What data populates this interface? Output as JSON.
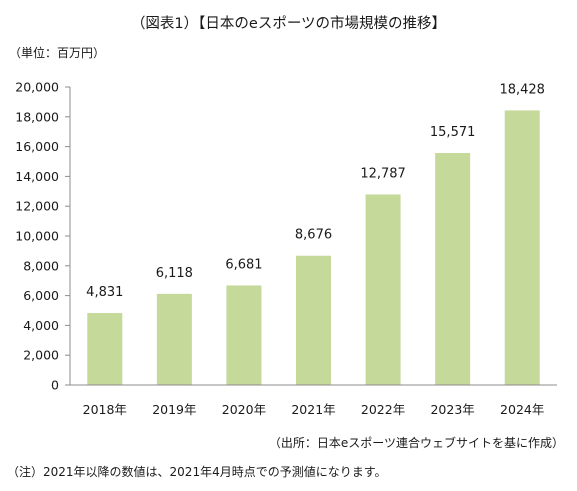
{
  "header": {
    "title": "（図表1）【日本のeスポーツの市場規模の推移】",
    "unit": "（単位：百万円）"
  },
  "footer": {
    "source": "（出所：日本eスポーツ連合ウェブサイトを基に作成）",
    "note": "（注）2021年以降の数値は、2021年4月時点での予測値になります。"
  },
  "colors": {
    "bar": "#c5d99a",
    "axis": "#8c8c8c"
  },
  "chart_data": {
    "type": "bar",
    "title": "（図表1）【日本のeスポーツの市場規模の推移】",
    "ylabel": "（単位：百万円）",
    "categories": [
      "2018年",
      "2019年",
      "2020年",
      "2021年",
      "2022年",
      "2023年",
      "2024年"
    ],
    "values": [
      4831,
      6118,
      6681,
      8676,
      12787,
      15571,
      18428
    ],
    "value_labels": [
      "4,831",
      "6,118",
      "6,681",
      "8,676",
      "12,787",
      "15,571",
      "18,428"
    ],
    "yticks": [
      0,
      2000,
      4000,
      6000,
      8000,
      10000,
      12000,
      14000,
      16000,
      18000,
      20000
    ],
    "ytick_labels": [
      "0",
      "2,000",
      "4,000",
      "6,000",
      "8,000",
      "10,000",
      "12,000",
      "14,000",
      "16,000",
      "18,000",
      "20,000"
    ],
    "ylim": [
      0,
      20000
    ],
    "grid": false,
    "legend": "none"
  }
}
